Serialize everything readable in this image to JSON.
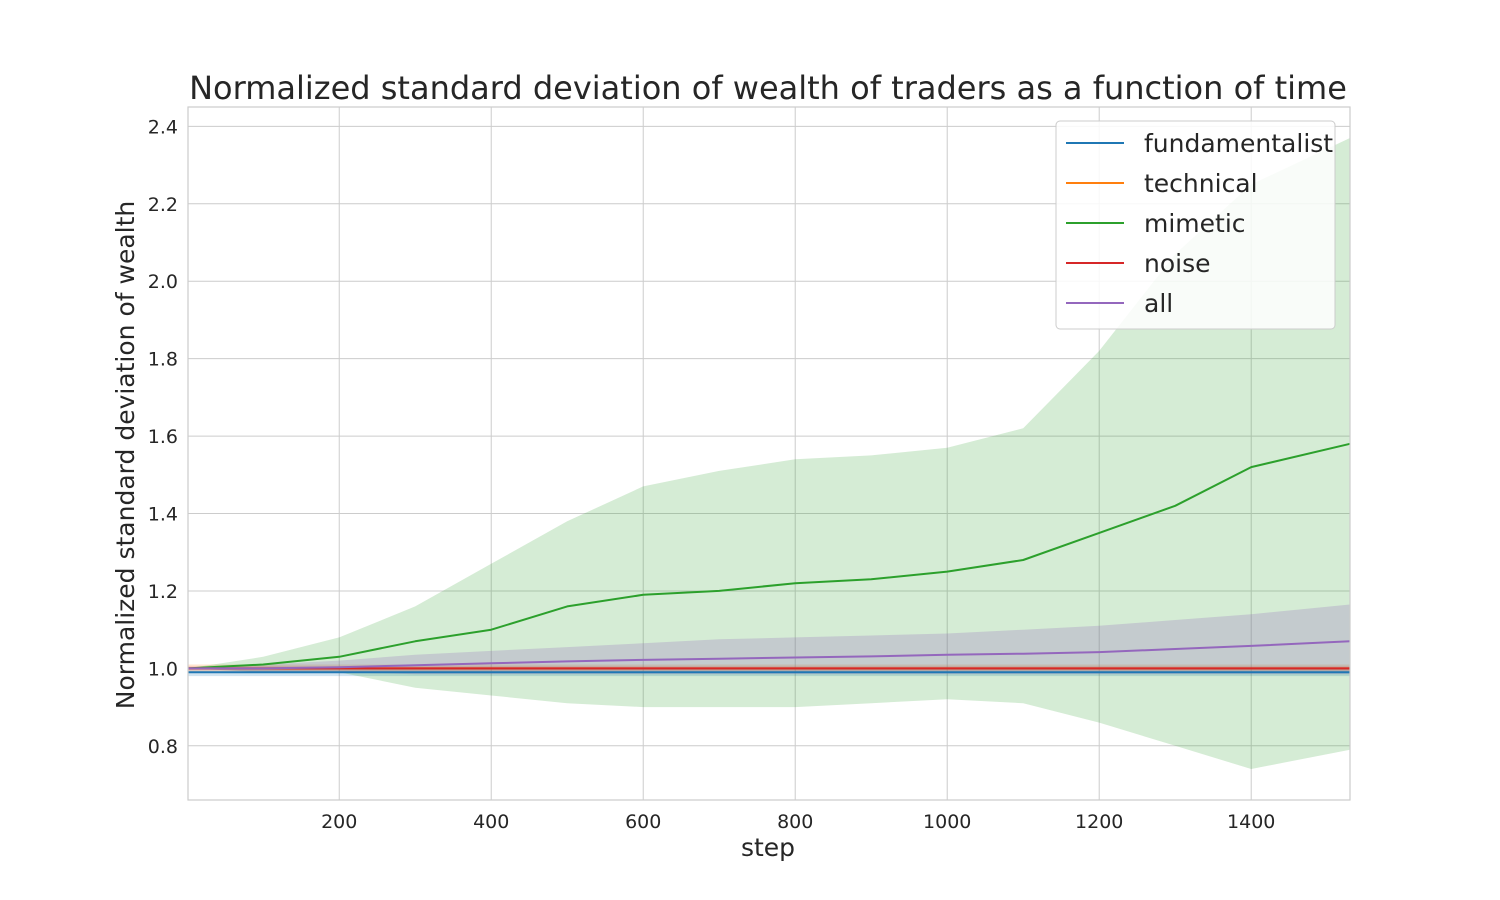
{
  "chart_data": {
    "type": "line",
    "title": "Normalized standard deviation of wealth of traders as a function of time",
    "xlabel": "step",
    "ylabel": "Normalized standard deviation of wealth",
    "xlim": [
      1,
      1530
    ],
    "ylim": [
      0.66,
      2.45
    ],
    "xticks": [
      200,
      400,
      600,
      800,
      1000,
      1200,
      1400
    ],
    "yticks": [
      0.8,
      1.0,
      1.2,
      1.4,
      1.6,
      1.8,
      2.0,
      2.2,
      2.4
    ],
    "xtick_labels": [
      "200",
      "400",
      "600",
      "800",
      "1000",
      "1200",
      "1400"
    ],
    "ytick_labels": [
      "0.8",
      "1.0",
      "1.2",
      "1.4",
      "1.6",
      "1.8",
      "2.0",
      "2.2",
      "2.4"
    ],
    "grid": true,
    "legend_position": "top-right",
    "x": [
      1,
      100,
      200,
      300,
      400,
      500,
      600,
      700,
      800,
      900,
      1000,
      1100,
      1200,
      1300,
      1400,
      1530
    ],
    "series": [
      {
        "name": "fundamentalist",
        "color": "#1f77b4",
        "values": [
          0.99,
          0.99,
          0.99,
          0.99,
          0.99,
          0.99,
          0.99,
          0.99,
          0.99,
          0.99,
          0.99,
          0.99,
          0.99,
          0.99,
          0.99,
          0.99
        ],
        "lower": [
          0.98,
          0.98,
          0.98,
          0.98,
          0.98,
          0.98,
          0.98,
          0.98,
          0.98,
          0.98,
          0.98,
          0.98,
          0.98,
          0.98,
          0.98,
          0.98
        ],
        "upper": [
          1.0,
          1.0,
          1.0,
          1.0,
          1.0,
          1.0,
          1.0,
          1.0,
          1.0,
          1.0,
          1.0,
          1.0,
          1.0,
          1.0,
          1.0,
          1.0
        ]
      },
      {
        "name": "technical",
        "color": "#ff7f0e",
        "values": [
          1.0,
          1.0,
          1.0,
          1.0,
          1.0,
          1.0,
          1.0,
          1.0,
          1.0,
          1.0,
          1.0,
          1.0,
          1.0,
          1.0,
          1.0,
          1.0
        ],
        "lower": [
          0.99,
          0.99,
          0.99,
          0.99,
          0.99,
          0.99,
          0.99,
          0.99,
          0.99,
          0.99,
          0.99,
          0.99,
          0.99,
          0.99,
          0.99,
          0.99
        ],
        "upper": [
          1.01,
          1.01,
          1.01,
          1.01,
          1.01,
          1.01,
          1.01,
          1.01,
          1.01,
          1.01,
          1.01,
          1.01,
          1.01,
          1.01,
          1.01,
          1.01
        ]
      },
      {
        "name": "mimetic",
        "color": "#2ca02c",
        "values": [
          1.0,
          1.01,
          1.03,
          1.07,
          1.1,
          1.16,
          1.19,
          1.2,
          1.22,
          1.23,
          1.25,
          1.28,
          1.35,
          1.42,
          1.52,
          1.58
        ],
        "lower": [
          1.0,
          0.99,
          0.99,
          0.95,
          0.93,
          0.91,
          0.9,
          0.9,
          0.9,
          0.91,
          0.92,
          0.91,
          0.86,
          0.8,
          0.74,
          0.79
        ],
        "upper": [
          1.0,
          1.03,
          1.08,
          1.16,
          1.27,
          1.38,
          1.47,
          1.51,
          1.54,
          1.55,
          1.57,
          1.62,
          1.82,
          2.07,
          2.25,
          2.37
        ]
      },
      {
        "name": "noise",
        "color": "#d62728",
        "values": [
          1.0,
          1.0,
          1.0,
          1.0,
          1.0,
          1.0,
          1.0,
          1.0,
          1.0,
          1.0,
          1.0,
          1.0,
          1.0,
          1.0,
          1.0,
          1.0
        ],
        "lower": [
          0.995,
          0.995,
          0.995,
          0.995,
          0.995,
          0.995,
          0.995,
          0.995,
          0.995,
          0.995,
          0.995,
          0.995,
          0.995,
          0.995,
          0.995,
          0.995
        ],
        "upper": [
          1.005,
          1.005,
          1.005,
          1.005,
          1.005,
          1.005,
          1.005,
          1.005,
          1.005,
          1.005,
          1.005,
          1.005,
          1.005,
          1.005,
          1.005,
          1.005
        ]
      },
      {
        "name": "all",
        "color": "#9467bd",
        "values": [
          1.0,
          1.0,
          1.003,
          1.008,
          1.013,
          1.018,
          1.022,
          1.025,
          1.028,
          1.031,
          1.035,
          1.038,
          1.042,
          1.05,
          1.058,
          1.07
        ],
        "lower": [
          1.0,
          0.99,
          0.99,
          0.985,
          0.985,
          0.985,
          0.985,
          0.985,
          0.985,
          0.985,
          0.985,
          0.985,
          0.985,
          0.985,
          0.985,
          0.985
        ],
        "upper": [
          1.0,
          1.01,
          1.02,
          1.035,
          1.045,
          1.055,
          1.065,
          1.075,
          1.08,
          1.085,
          1.09,
          1.1,
          1.11,
          1.125,
          1.14,
          1.165
        ]
      }
    ]
  }
}
